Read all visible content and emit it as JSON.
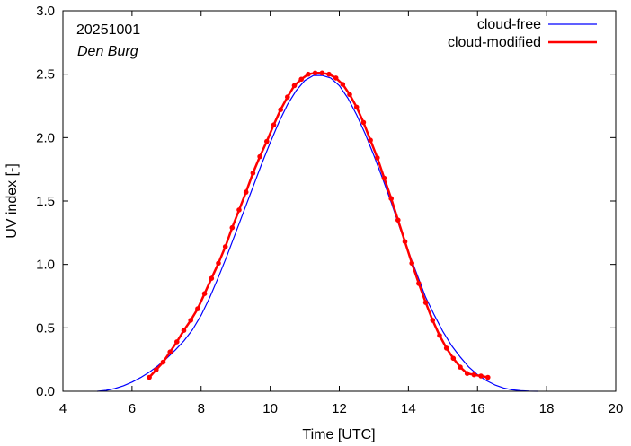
{
  "chart_data": {
    "type": "line",
    "annotations": {
      "date": "20251001",
      "location": "Den Burg"
    },
    "xlabel": "Time  [UTC]",
    "ylabel": "UV index  [-]",
    "xlim": [
      4,
      20
    ],
    "ylim": [
      0.0,
      3.0
    ],
    "x_ticks": [
      4,
      6,
      8,
      10,
      12,
      14,
      16,
      18,
      20
    ],
    "y_ticks": [
      0.0,
      0.5,
      1.0,
      1.5,
      2.0,
      2.5,
      3.0
    ],
    "x_tick_labels": [
      "4",
      "6",
      "8",
      "10",
      "12",
      "14",
      "16",
      "18",
      "20"
    ],
    "y_tick_labels": [
      "0.0",
      "0.5",
      "1.0",
      "1.5",
      "2.0",
      "2.5",
      "3.0"
    ],
    "grid": false,
    "legend_position": "top-right",
    "series": [
      {
        "name": "cloud-free",
        "color": "#0000ff",
        "markers": false,
        "x": [
          5.0,
          5.25,
          5.5,
          5.75,
          6.0,
          6.25,
          6.5,
          6.75,
          7.0,
          7.25,
          7.5,
          7.75,
          8.0,
          8.25,
          8.5,
          8.75,
          9.0,
          9.25,
          9.5,
          9.75,
          10.0,
          10.25,
          10.5,
          10.75,
          11.0,
          11.25,
          11.5,
          11.75,
          12.0,
          12.25,
          12.5,
          12.75,
          13.0,
          13.25,
          13.5,
          13.75,
          14.0,
          14.25,
          14.5,
          14.75,
          15.0,
          15.25,
          15.5,
          15.75,
          16.0,
          16.25,
          16.5,
          16.75,
          17.0,
          17.25,
          17.5,
          17.75
        ],
        "y": [
          0.0,
          0.007,
          0.021,
          0.043,
          0.072,
          0.108,
          0.151,
          0.201,
          0.259,
          0.324,
          0.396,
          0.485,
          0.6,
          0.74,
          0.9,
          1.07,
          1.25,
          1.43,
          1.61,
          1.79,
          1.96,
          2.12,
          2.26,
          2.37,
          2.45,
          2.49,
          2.49,
          2.47,
          2.41,
          2.31,
          2.18,
          2.03,
          1.86,
          1.68,
          1.49,
          1.29,
          1.1,
          0.92,
          0.74,
          0.6,
          0.47,
          0.36,
          0.27,
          0.19,
          0.13,
          0.085,
          0.05,
          0.026,
          0.011,
          0.004,
          0.001,
          0.0
        ]
      },
      {
        "name": "cloud-modified",
        "color": "#ff0000",
        "markers": true,
        "x": [
          6.5,
          6.7,
          6.9,
          7.1,
          7.3,
          7.5,
          7.7,
          7.9,
          8.1,
          8.3,
          8.5,
          8.7,
          8.9,
          9.1,
          9.3,
          9.5,
          9.7,
          9.9,
          10.1,
          10.3,
          10.5,
          10.7,
          10.9,
          11.1,
          11.3,
          11.5,
          11.7,
          11.9,
          12.1,
          12.3,
          12.5,
          12.7,
          12.9,
          13.1,
          13.3,
          13.5,
          13.7,
          13.9,
          14.1,
          14.3,
          14.5,
          14.7,
          14.9,
          15.1,
          15.3,
          15.5,
          15.7,
          15.9,
          16.1,
          16.3
        ],
        "y": [
          0.11,
          0.17,
          0.23,
          0.31,
          0.39,
          0.48,
          0.56,
          0.65,
          0.77,
          0.89,
          1.01,
          1.14,
          1.29,
          1.43,
          1.57,
          1.72,
          1.85,
          1.97,
          2.1,
          2.22,
          2.32,
          2.41,
          2.46,
          2.5,
          2.51,
          2.51,
          2.5,
          2.47,
          2.42,
          2.34,
          2.24,
          2.12,
          1.98,
          1.84,
          1.68,
          1.52,
          1.35,
          1.18,
          1.01,
          0.85,
          0.7,
          0.56,
          0.44,
          0.34,
          0.26,
          0.19,
          0.14,
          0.13,
          0.12,
          0.11
        ]
      }
    ]
  }
}
